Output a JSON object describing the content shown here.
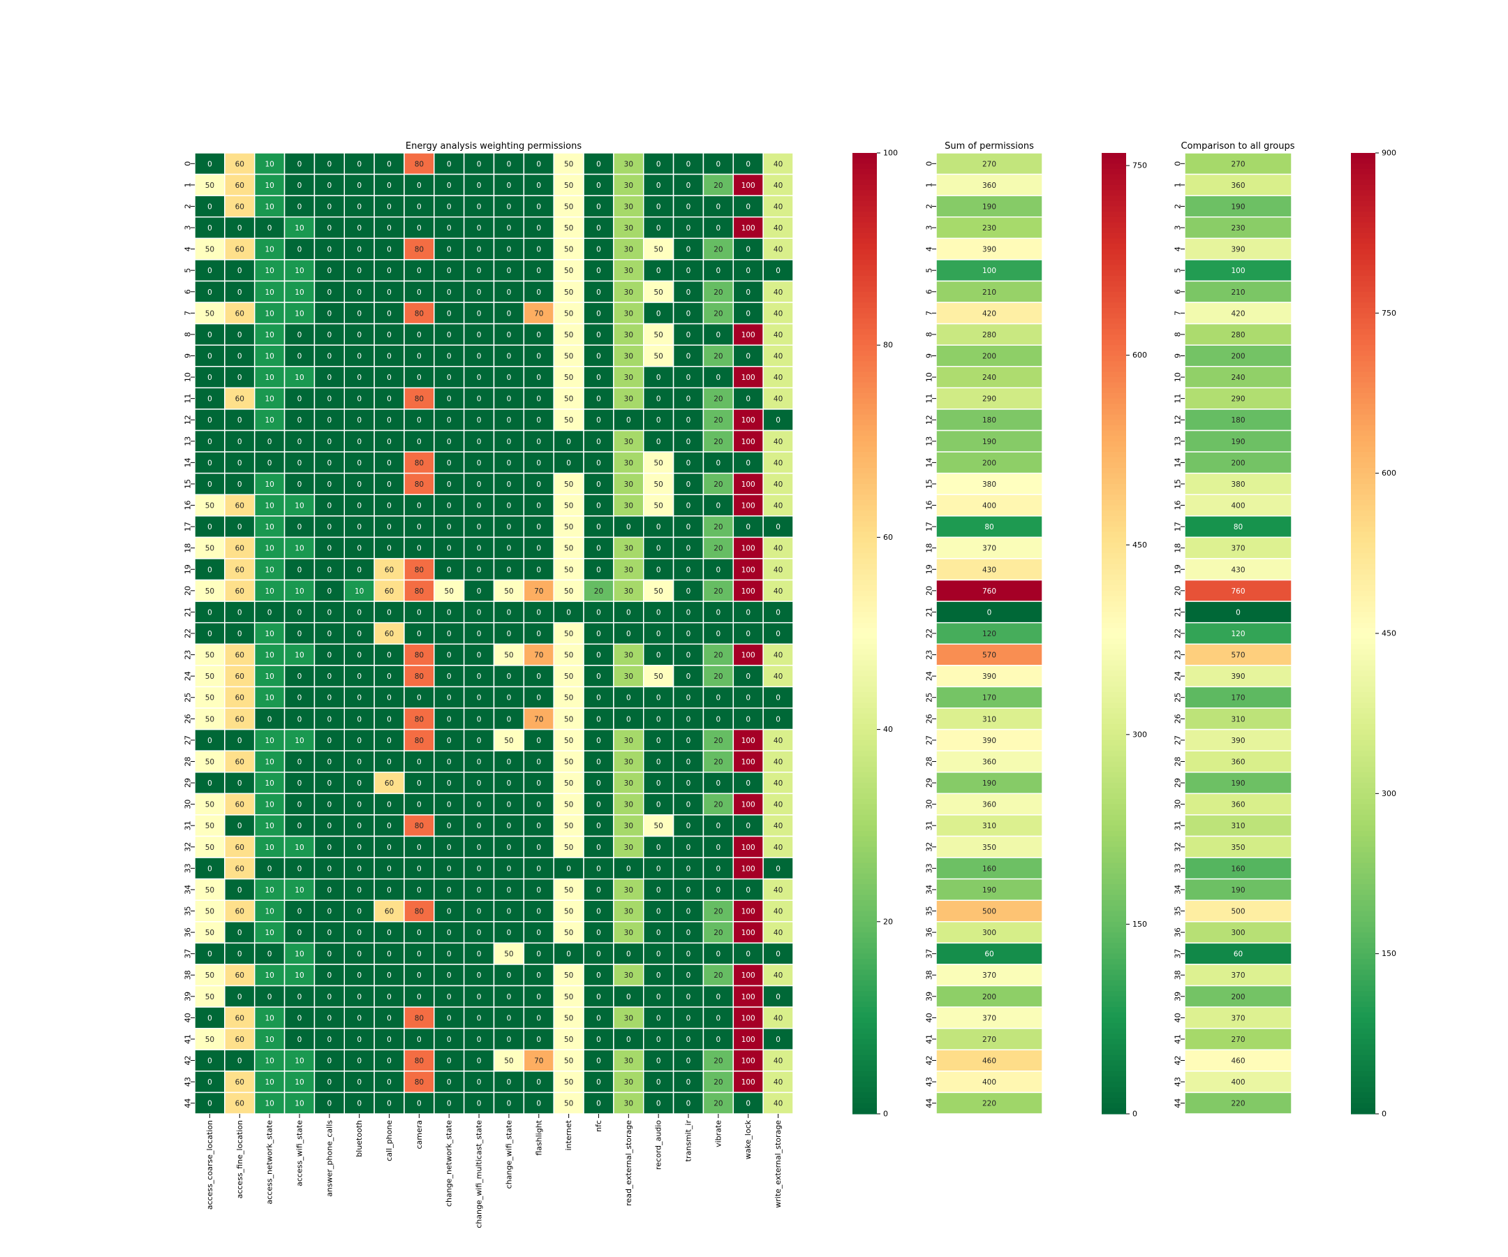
{
  "figure": {
    "background": "#ffffff",
    "colormap": "RdYlGn_r",
    "cell_border_color": "#ffffff"
  },
  "chart_data": [
    {
      "type": "heatmap",
      "title": "Energy analysis weighting permissions",
      "rows": [
        "0",
        "1",
        "2",
        "3",
        "4",
        "5",
        "6",
        "7",
        "8",
        "9",
        "10",
        "11",
        "12",
        "13",
        "14",
        "15",
        "16",
        "17",
        "18",
        "19",
        "20",
        "21",
        "22",
        "23",
        "24",
        "25",
        "26",
        "27",
        "28",
        "29",
        "30",
        "31",
        "32",
        "33",
        "34",
        "35",
        "36",
        "37",
        "38",
        "39",
        "40",
        "41",
        "42",
        "43",
        "44"
      ],
      "columns": [
        "access_coarse_location",
        "access_fine_location",
        "access_network_state",
        "access_wifi_state",
        "answer_phone_calls",
        "bluetooth",
        "call_phone",
        "camera",
        "change_network_state",
        "change_wifi_multicast_state",
        "change_wifi_state",
        "flashlight",
        "internet",
        "nfc",
        "read_external_storage",
        "record_audio",
        "transmit_ir",
        "vibrate",
        "wake_lock",
        "write_external_storage"
      ],
      "values": [
        [
          0,
          60,
          10,
          0,
          0,
          0,
          0,
          80,
          0,
          0,
          0,
          0,
          50,
          0,
          30,
          0,
          0,
          0,
          0,
          40
        ],
        [
          50,
          60,
          10,
          0,
          0,
          0,
          0,
          0,
          0,
          0,
          0,
          0,
          50,
          0,
          30,
          0,
          0,
          20,
          100,
          40
        ],
        [
          0,
          60,
          10,
          0,
          0,
          0,
          0,
          0,
          0,
          0,
          0,
          0,
          50,
          0,
          30,
          0,
          0,
          0,
          0,
          40
        ],
        [
          0,
          0,
          0,
          10,
          0,
          0,
          0,
          0,
          0,
          0,
          0,
          0,
          50,
          0,
          30,
          0,
          0,
          0,
          100,
          40
        ],
        [
          50,
          60,
          10,
          0,
          0,
          0,
          0,
          80,
          0,
          0,
          0,
          0,
          50,
          0,
          30,
          50,
          0,
          20,
          0,
          40
        ],
        [
          0,
          0,
          10,
          10,
          0,
          0,
          0,
          0,
          0,
          0,
          0,
          0,
          50,
          0,
          30,
          0,
          0,
          0,
          0,
          0
        ],
        [
          0,
          0,
          10,
          10,
          0,
          0,
          0,
          0,
          0,
          0,
          0,
          0,
          50,
          0,
          30,
          50,
          0,
          20,
          0,
          40
        ],
        [
          50,
          60,
          10,
          10,
          0,
          0,
          0,
          80,
          0,
          0,
          0,
          70,
          50,
          0,
          30,
          0,
          0,
          20,
          0,
          40
        ],
        [
          0,
          0,
          10,
          0,
          0,
          0,
          0,
          0,
          0,
          0,
          0,
          0,
          50,
          0,
          30,
          50,
          0,
          0,
          100,
          40
        ],
        [
          0,
          0,
          10,
          0,
          0,
          0,
          0,
          0,
          0,
          0,
          0,
          0,
          50,
          0,
          30,
          50,
          0,
          20,
          0,
          40
        ],
        [
          0,
          0,
          10,
          10,
          0,
          0,
          0,
          0,
          0,
          0,
          0,
          0,
          50,
          0,
          30,
          0,
          0,
          0,
          100,
          40
        ],
        [
          0,
          60,
          10,
          0,
          0,
          0,
          0,
          80,
          0,
          0,
          0,
          0,
          50,
          0,
          30,
          0,
          0,
          20,
          0,
          40
        ],
        [
          0,
          0,
          10,
          0,
          0,
          0,
          0,
          0,
          0,
          0,
          0,
          0,
          50,
          0,
          0,
          0,
          0,
          20,
          100,
          0
        ],
        [
          0,
          0,
          0,
          0,
          0,
          0,
          0,
          0,
          0,
          0,
          0,
          0,
          0,
          0,
          30,
          0,
          0,
          20,
          100,
          40
        ],
        [
          0,
          0,
          0,
          0,
          0,
          0,
          0,
          80,
          0,
          0,
          0,
          0,
          0,
          0,
          30,
          50,
          0,
          0,
          0,
          40
        ],
        [
          0,
          0,
          10,
          0,
          0,
          0,
          0,
          80,
          0,
          0,
          0,
          0,
          50,
          0,
          30,
          50,
          0,
          20,
          100,
          40
        ],
        [
          50,
          60,
          10,
          10,
          0,
          0,
          0,
          0,
          0,
          0,
          0,
          0,
          50,
          0,
          30,
          50,
          0,
          0,
          100,
          40
        ],
        [
          0,
          0,
          10,
          0,
          0,
          0,
          0,
          0,
          0,
          0,
          0,
          0,
          50,
          0,
          0,
          0,
          0,
          20,
          0,
          0
        ],
        [
          50,
          60,
          10,
          10,
          0,
          0,
          0,
          0,
          0,
          0,
          0,
          0,
          50,
          0,
          30,
          0,
          0,
          20,
          100,
          40
        ],
        [
          0,
          60,
          10,
          0,
          0,
          0,
          60,
          80,
          0,
          0,
          0,
          0,
          50,
          0,
          30,
          0,
          0,
          0,
          100,
          40
        ],
        [
          50,
          60,
          10,
          10,
          0,
          10,
          60,
          80,
          50,
          0,
          50,
          70,
          50,
          20,
          30,
          50,
          0,
          20,
          100,
          40
        ],
        [
          0,
          0,
          0,
          0,
          0,
          0,
          0,
          0,
          0,
          0,
          0,
          0,
          0,
          0,
          0,
          0,
          0,
          0,
          0,
          0
        ],
        [
          0,
          0,
          10,
          0,
          0,
          0,
          60,
          0,
          0,
          0,
          0,
          0,
          50,
          0,
          0,
          0,
          0,
          0,
          0,
          0
        ],
        [
          50,
          60,
          10,
          10,
          0,
          0,
          0,
          80,
          0,
          0,
          50,
          70,
          50,
          0,
          30,
          0,
          0,
          20,
          100,
          40
        ],
        [
          50,
          60,
          10,
          0,
          0,
          0,
          0,
          80,
          0,
          0,
          0,
          0,
          50,
          0,
          30,
          50,
          0,
          20,
          0,
          40
        ],
        [
          50,
          60,
          10,
          0,
          0,
          0,
          0,
          0,
          0,
          0,
          0,
          0,
          50,
          0,
          0,
          0,
          0,
          0,
          0,
          0
        ],
        [
          50,
          60,
          0,
          0,
          0,
          0,
          0,
          80,
          0,
          0,
          0,
          70,
          50,
          0,
          0,
          0,
          0,
          0,
          0,
          0
        ],
        [
          0,
          0,
          10,
          10,
          0,
          0,
          0,
          80,
          0,
          0,
          50,
          0,
          50,
          0,
          30,
          0,
          0,
          20,
          100,
          40
        ],
        [
          50,
          60,
          10,
          0,
          0,
          0,
          0,
          0,
          0,
          0,
          0,
          0,
          50,
          0,
          30,
          0,
          0,
          20,
          100,
          40
        ],
        [
          0,
          0,
          10,
          0,
          0,
          0,
          60,
          0,
          0,
          0,
          0,
          0,
          50,
          0,
          30,
          0,
          0,
          0,
          0,
          40
        ],
        [
          50,
          60,
          10,
          0,
          0,
          0,
          0,
          0,
          0,
          0,
          0,
          0,
          50,
          0,
          30,
          0,
          0,
          20,
          100,
          40
        ],
        [
          50,
          0,
          10,
          0,
          0,
          0,
          0,
          80,
          0,
          0,
          0,
          0,
          50,
          0,
          30,
          50,
          0,
          0,
          0,
          40
        ],
        [
          50,
          60,
          10,
          10,
          0,
          0,
          0,
          0,
          0,
          0,
          0,
          0,
          50,
          0,
          30,
          0,
          0,
          0,
          100,
          40
        ],
        [
          0,
          60,
          0,
          0,
          0,
          0,
          0,
          0,
          0,
          0,
          0,
          0,
          0,
          0,
          0,
          0,
          0,
          0,
          100,
          0
        ],
        [
          50,
          0,
          10,
          10,
          0,
          0,
          0,
          0,
          0,
          0,
          0,
          0,
          50,
          0,
          30,
          0,
          0,
          0,
          0,
          40
        ],
        [
          50,
          60,
          10,
          0,
          0,
          0,
          60,
          80,
          0,
          0,
          0,
          0,
          50,
          0,
          30,
          0,
          0,
          20,
          100,
          40
        ],
        [
          50,
          0,
          10,
          0,
          0,
          0,
          0,
          0,
          0,
          0,
          0,
          0,
          50,
          0,
          30,
          0,
          0,
          20,
          100,
          40
        ],
        [
          0,
          0,
          0,
          10,
          0,
          0,
          0,
          0,
          0,
          0,
          50,
          0,
          0,
          0,
          0,
          0,
          0,
          0,
          0,
          0
        ],
        [
          50,
          60,
          10,
          10,
          0,
          0,
          0,
          0,
          0,
          0,
          0,
          0,
          50,
          0,
          30,
          0,
          0,
          20,
          100,
          40
        ],
        [
          50,
          0,
          0,
          0,
          0,
          0,
          0,
          0,
          0,
          0,
          0,
          0,
          50,
          0,
          0,
          0,
          0,
          0,
          100,
          0
        ],
        [
          0,
          60,
          10,
          0,
          0,
          0,
          0,
          80,
          0,
          0,
          0,
          0,
          50,
          0,
          30,
          0,
          0,
          0,
          100,
          40
        ],
        [
          50,
          60,
          10,
          0,
          0,
          0,
          0,
          0,
          0,
          0,
          0,
          0,
          50,
          0,
          0,
          0,
          0,
          0,
          100,
          0
        ],
        [
          0,
          0,
          10,
          10,
          0,
          0,
          0,
          80,
          0,
          0,
          50,
          70,
          50,
          0,
          30,
          0,
          0,
          20,
          100,
          40
        ],
        [
          0,
          60,
          10,
          10,
          0,
          0,
          0,
          80,
          0,
          0,
          0,
          0,
          50,
          0,
          30,
          0,
          0,
          20,
          100,
          40
        ],
        [
          0,
          60,
          10,
          10,
          0,
          0,
          0,
          0,
          0,
          0,
          0,
          0,
          50,
          0,
          30,
          0,
          0,
          20,
          0,
          40
        ]
      ],
      "vmin": 0,
      "vmax": 100,
      "colorbar_ticks": [
        0,
        20,
        40,
        60,
        80,
        100
      ],
      "annotate": true
    },
    {
      "type": "heatmap",
      "title": "Sum of permissions",
      "rows": [
        "0",
        "1",
        "2",
        "3",
        "4",
        "5",
        "6",
        "7",
        "8",
        "9",
        "10",
        "11",
        "12",
        "13",
        "14",
        "15",
        "16",
        "17",
        "18",
        "19",
        "20",
        "21",
        "22",
        "23",
        "24",
        "25",
        "26",
        "27",
        "28",
        "29",
        "30",
        "31",
        "32",
        "33",
        "34",
        "35",
        "36",
        "37",
        "38",
        "39",
        "40",
        "41",
        "42",
        "43",
        "44"
      ],
      "values": [
        270,
        360,
        190,
        230,
        390,
        100,
        210,
        420,
        280,
        200,
        240,
        290,
        180,
        190,
        200,
        380,
        400,
        80,
        370,
        430,
        760,
        0,
        120,
        570,
        390,
        170,
        310,
        390,
        360,
        190,
        360,
        310,
        350,
        160,
        190,
        500,
        300,
        60,
        370,
        200,
        370,
        270,
        460,
        400,
        220
      ],
      "vmin": 0,
      "vmax": 760,
      "colorbar_ticks": [
        0,
        150,
        300,
        450,
        600,
        750
      ],
      "annotate": true
    },
    {
      "type": "heatmap",
      "title": "Comparison to all groups",
      "rows": [
        "0",
        "1",
        "2",
        "3",
        "4",
        "5",
        "6",
        "7",
        "8",
        "9",
        "10",
        "11",
        "12",
        "13",
        "14",
        "15",
        "16",
        "17",
        "18",
        "19",
        "20",
        "21",
        "22",
        "23",
        "24",
        "25",
        "26",
        "27",
        "28",
        "29",
        "30",
        "31",
        "32",
        "33",
        "34",
        "35",
        "36",
        "37",
        "38",
        "39",
        "40",
        "41",
        "42",
        "43",
        "44"
      ],
      "values": [
        270,
        360,
        190,
        230,
        390,
        100,
        210,
        420,
        280,
        200,
        240,
        290,
        180,
        190,
        200,
        380,
        400,
        80,
        370,
        430,
        760,
        0,
        120,
        570,
        390,
        170,
        310,
        390,
        360,
        190,
        360,
        310,
        350,
        160,
        190,
        500,
        300,
        60,
        370,
        200,
        370,
        270,
        460,
        400,
        220
      ],
      "vmin": 0,
      "vmax": 900,
      "colorbar_ticks": [
        0,
        150,
        300,
        450,
        600,
        750,
        900
      ],
      "annotate": true
    }
  ]
}
